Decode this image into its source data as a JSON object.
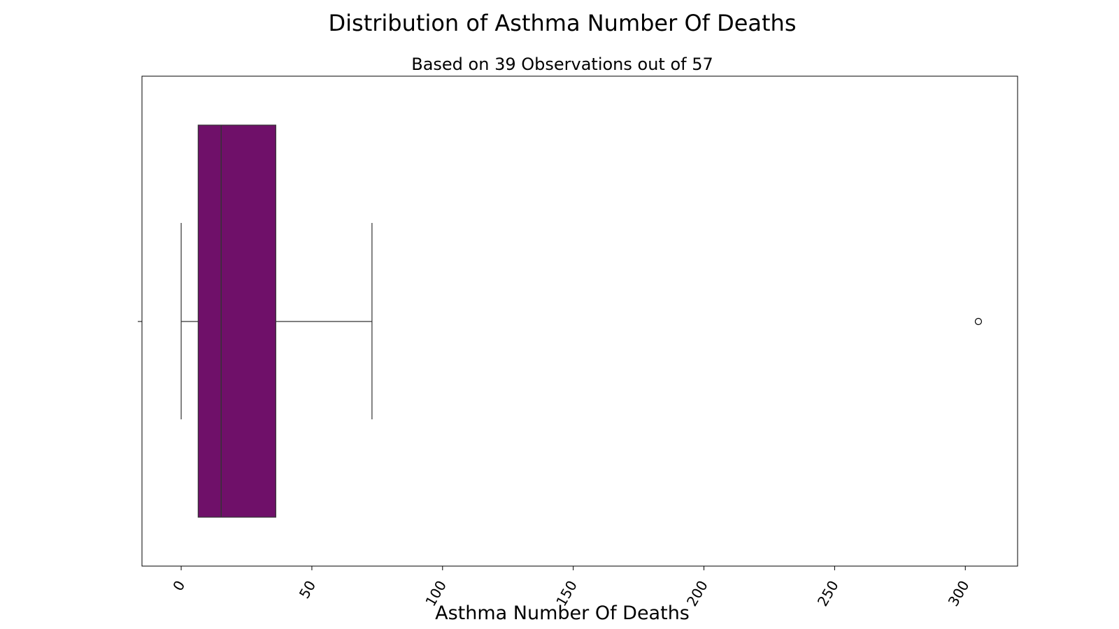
{
  "chart_data": {
    "type": "box",
    "orientation": "horizontal",
    "title": "Distribution of Asthma Number Of Deaths",
    "subtitle": "Based on 39 Observations out of 57",
    "xlabel": "Asthma Number Of Deaths",
    "ylabel": "",
    "xlim": [
      -15,
      320
    ],
    "xticks": [
      0,
      50,
      100,
      150,
      200,
      250,
      300
    ],
    "xtick_labels": [
      "0",
      "50",
      "100",
      "150",
      "200",
      "250",
      "300"
    ],
    "xtick_rotation_deg": -60,
    "grid": false,
    "box": {
      "whisker_low": 0,
      "q1": 6.5,
      "median": 15.3,
      "q3": 36.2,
      "whisker_high": 73,
      "outliers": [
        305
      ],
      "fill_color": "#6f1069",
      "line_color": "#333333"
    }
  }
}
